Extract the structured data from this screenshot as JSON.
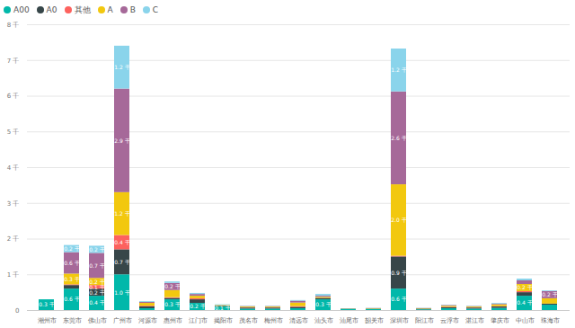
{
  "chart_data": {
    "type": "bar",
    "stacked": true,
    "data_labels": true,
    "grid": true,
    "legend": "top-left",
    "categories": [
      "潮州市",
      "东莞市",
      "佛山市",
      "广州市",
      "河源市",
      "惠州市",
      "江门市",
      "揭阳市",
      "茂名市",
      "梅州市",
      "清远市",
      "汕头市",
      "汕尾市",
      "韶关市",
      "深圳市",
      "阳江市",
      "云浮市",
      "湛江市",
      "肇庆市",
      "中山市",
      "珠海市"
    ],
    "ylim": [
      0,
      8000
    ],
    "yticks": [
      0,
      {
        "value": 1000,
        "label": "1 千"
      },
      {
        "value": 2000,
        "label": "2 千"
      },
      {
        "value": 3000,
        "label": "3 千"
      },
      {
        "value": 4000,
        "label": "4 千"
      },
      {
        "value": 5000,
        "label": "5 千"
      },
      {
        "value": 6000,
        "label": "6 千"
      },
      {
        "value": 7000,
        "label": "7 千"
      },
      {
        "value": 8000,
        "label": "8 千"
      }
    ],
    "series": [
      {
        "name": "A00",
        "color": "#01B8AA",
        "values": [
          300,
          600,
          400,
          1000,
          50,
          300,
          200,
          100,
          40,
          40,
          50,
          300,
          30,
          30,
          600,
          20,
          50,
          40,
          60,
          400,
          150
        ],
        "value_labels": [
          "0.3 千",
          "0.6 千",
          "0.4 千",
          "1.0 千",
          null,
          "0.3 千",
          "0.2 千",
          "0.1 千",
          null,
          null,
          null,
          "0.3 千",
          null,
          null,
          "0.6 千",
          null,
          null,
          null,
          null,
          "0.4 千",
          null
        ]
      },
      {
        "name": "A0",
        "color": "#374649",
        "values": [
          0,
          100,
          200,
          700,
          50,
          40,
          100,
          20,
          30,
          30,
          40,
          40,
          10,
          10,
          900,
          20,
          30,
          30,
          40,
          100,
          30
        ],
        "value_labels": [
          null,
          null,
          "0.2 千",
          "0.7 千",
          null,
          null,
          null,
          null,
          null,
          null,
          null,
          null,
          null,
          null,
          "0.9 千",
          null,
          null,
          null,
          null,
          null,
          null
        ]
      },
      {
        "name": "其他",
        "color": "#FD625E",
        "values": [
          0,
          20,
          100,
          400,
          20,
          20,
          30,
          0,
          10,
          10,
          20,
          0,
          0,
          0,
          20,
          0,
          10,
          10,
          10,
          30,
          0
        ],
        "value_labels": [
          null,
          null,
          "0.1 千",
          "0.4 千",
          null,
          null,
          null,
          null,
          null,
          null,
          null,
          null,
          null,
          null,
          null,
          null,
          null,
          null,
          null,
          null,
          null
        ]
      },
      {
        "name": "A",
        "color": "#F2C80F",
        "values": [
          0,
          300,
          200,
          1200,
          80,
          200,
          70,
          20,
          20,
          20,
          100,
          30,
          5,
          10,
          2000,
          10,
          30,
          20,
          50,
          200,
          150
        ],
        "value_labels": [
          null,
          "0.3 千",
          "0.2 千",
          "1.2 千",
          null,
          null,
          null,
          null,
          null,
          null,
          null,
          null,
          null,
          null,
          "2.0 千",
          null,
          null,
          null,
          null,
          "0.2 千",
          null
        ]
      },
      {
        "name": "B",
        "color": "#A66999",
        "values": [
          0,
          600,
          700,
          2900,
          30,
          200,
          50,
          0,
          10,
          10,
          50,
          30,
          0,
          5,
          2600,
          5,
          20,
          10,
          20,
          100,
          200
        ],
        "value_labels": [
          null,
          "0.6 千",
          "0.7 千",
          "2.9 千",
          null,
          "0.2 千",
          null,
          null,
          null,
          null,
          null,
          null,
          null,
          null,
          "2.6 千",
          null,
          null,
          null,
          null,
          null,
          "0.2 千"
        ]
      },
      {
        "name": "C",
        "color": "#8AD4EB",
        "values": [
          0,
          200,
          200,
          1200,
          20,
          40,
          30,
          20,
          10,
          10,
          20,
          50,
          5,
          5,
          1200,
          5,
          10,
          10,
          20,
          50,
          20
        ],
        "value_labels": [
          null,
          "0.2 千",
          "0.2 千",
          "1.2 千",
          null,
          null,
          null,
          null,
          null,
          null,
          null,
          null,
          null,
          null,
          "1.2 千",
          null,
          null,
          null,
          null,
          null,
          null
        ]
      }
    ]
  }
}
